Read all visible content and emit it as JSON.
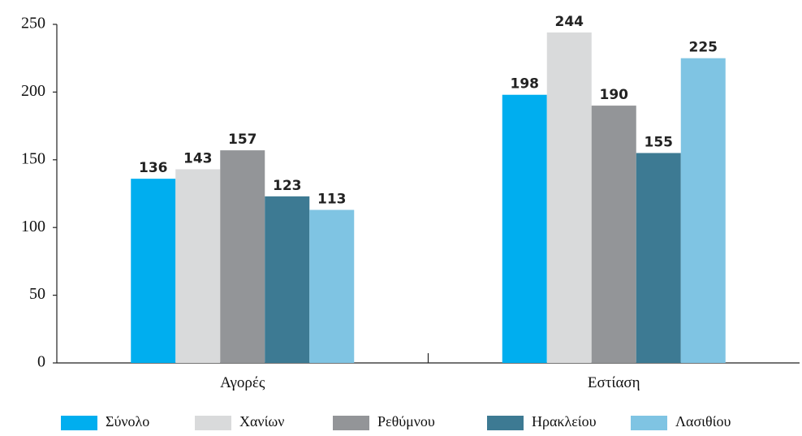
{
  "chart_data": {
    "type": "bar",
    "categories": [
      "Αγορές",
      "Εστίαση"
    ],
    "series": [
      {
        "name": "Σύνολο",
        "color": "#00aeef",
        "values": [
          136,
          198
        ]
      },
      {
        "name": "Χανίων",
        "color": "#d9dadb",
        "values": [
          143,
          244
        ]
      },
      {
        "name": "Ρεθύμνου",
        "color": "#939598",
        "values": [
          157,
          190
        ]
      },
      {
        "name": "Ηρακλείου",
        "color": "#3d7a93",
        "values": [
          123,
          155
        ]
      },
      {
        "name": "Λασιθίου",
        "color": "#7fc4e3",
        "values": [
          113,
          225
        ]
      }
    ],
    "ylim": [
      0,
      250
    ],
    "yticks": [
      0,
      50,
      100,
      150,
      200,
      250
    ],
    "grid": false,
    "legend": "bottom"
  }
}
